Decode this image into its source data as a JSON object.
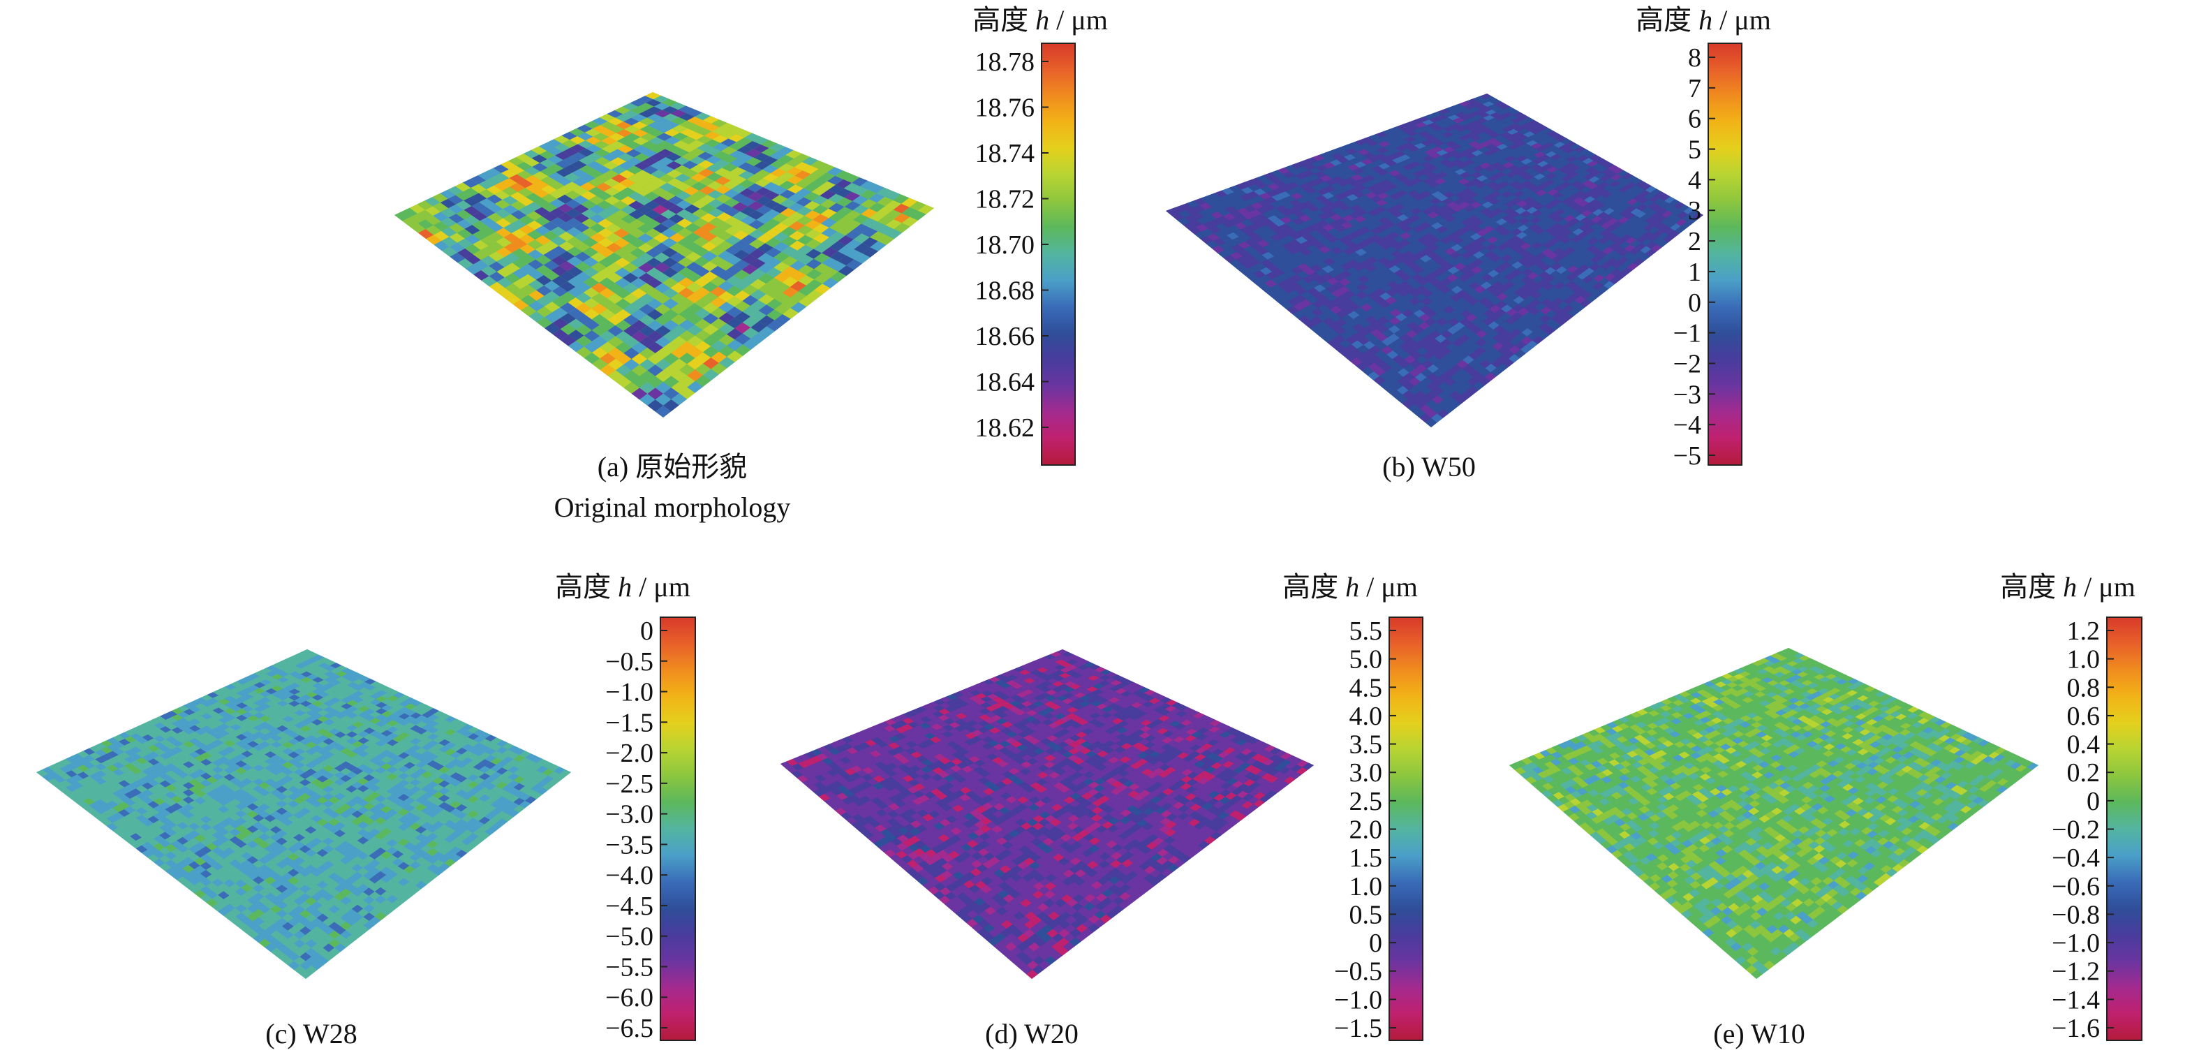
{
  "unit_title": {
    "prefix": "高度 ",
    "symbol": "h",
    "suffix": " / μm"
  },
  "panels": [
    {
      "id": "a",
      "caption": "(a) 原始形貌",
      "caption_en": "Original morphology",
      "surface": "rough",
      "base_level": 0.6,
      "ticks": [
        "18.78",
        "18.76",
        "18.74",
        "18.72",
        "18.70",
        "18.68",
        "18.66",
        "18.64",
        "18.62"
      ]
    },
    {
      "id": "b",
      "caption": "(b) W50",
      "surface": "flat",
      "base_level": 0.3,
      "ticks": [
        "8",
        "7",
        "6",
        "5",
        "4",
        "3",
        "2",
        "1",
        "0",
        "−1",
        "−2",
        "−3",
        "−4",
        "−5"
      ]
    },
    {
      "id": "c",
      "caption": "(c) W28",
      "surface": "flat",
      "base_level": 0.48,
      "ticks": [
        "0",
        "−0.5",
        "−1.0",
        "−1.5",
        "−2.0",
        "−2.5",
        "−3.0",
        "−3.5",
        "−4.0",
        "−4.5",
        "−5.0",
        "−5.5",
        "−6.0",
        "−6.5"
      ]
    },
    {
      "id": "d",
      "caption": "(d) W20",
      "surface": "flat",
      "base_level": 0.22,
      "ticks": [
        "5.5",
        "5.0",
        "4.5",
        "4.0",
        "3.5",
        "3.0",
        "2.5",
        "2.0",
        "1.5",
        "1.0",
        "0.5",
        "0",
        "−0.5",
        "−1.0",
        "−1.5"
      ]
    },
    {
      "id": "e",
      "caption": "(e) W10",
      "surface": "flat",
      "base_level": 0.56,
      "ticks": [
        "1.2",
        "1.0",
        "0.8",
        "0.6",
        "0.4",
        "0.2",
        "0",
        "−0.2",
        "−0.4",
        "−0.6",
        "−0.8",
        "−1.0",
        "−1.2",
        "−1.4",
        "−1.6"
      ]
    }
  ],
  "colormap": [
    "#b31b3a",
    "#c0216e",
    "#a32a8f",
    "#6a35a0",
    "#483c9c",
    "#2f4f9a",
    "#3a6cb8",
    "#4aa0c8",
    "#53b5a0",
    "#5cb85c",
    "#8cc63f",
    "#b8d432",
    "#e4d01d",
    "#f2b317",
    "#f08c1e",
    "#e8602a",
    "#d83a2a"
  ]
}
